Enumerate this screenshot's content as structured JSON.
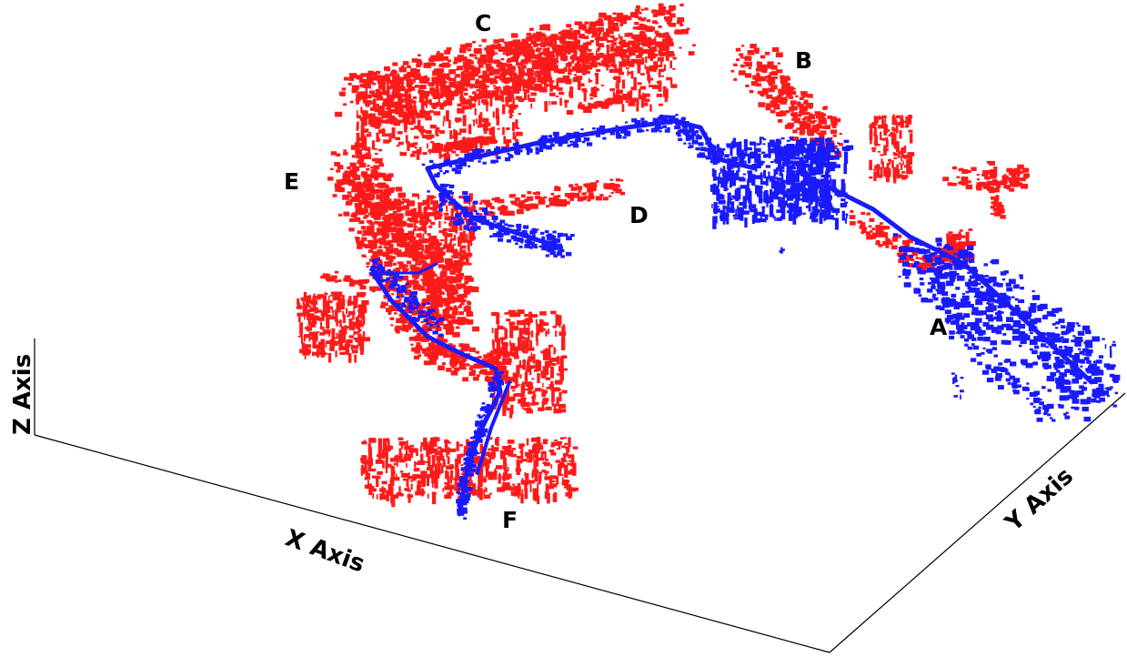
{
  "figure": {
    "axes": {
      "x_label": "X Axis",
      "y_label": "Y Axis",
      "z_label": "Z Axis"
    },
    "regions": [
      {
        "id": "A",
        "label": "A"
      },
      {
        "id": "B",
        "label": "B"
      },
      {
        "id": "C",
        "label": "C"
      },
      {
        "id": "D",
        "label": "D"
      },
      {
        "id": "E",
        "label": "E"
      },
      {
        "id": "F",
        "label": "F"
      }
    ],
    "colors": {
      "map_points": "#ff1a1a",
      "trajectory_points": "#1a1aff",
      "axis": "#000000"
    }
  }
}
